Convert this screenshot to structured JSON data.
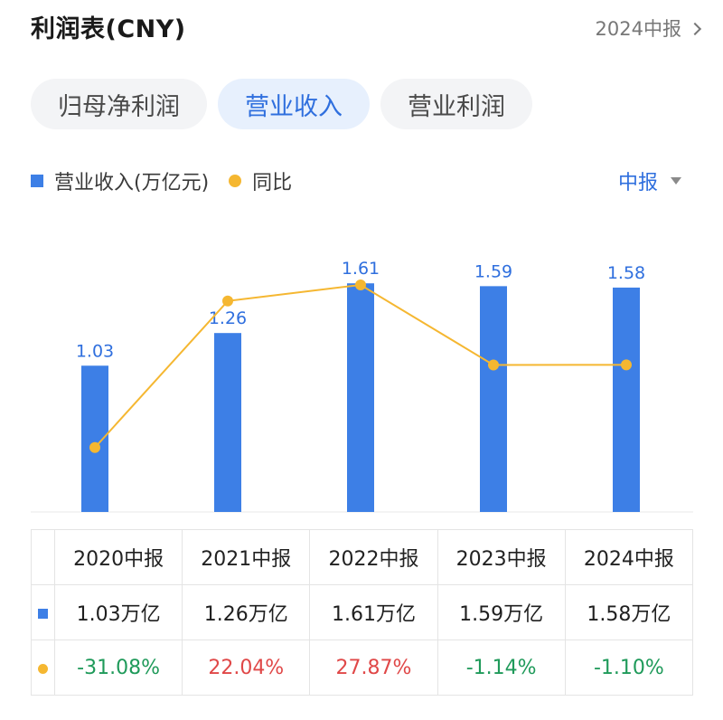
{
  "header": {
    "title": "利润表(CNY)",
    "period_link": "2024中报"
  },
  "tabs": [
    {
      "label": "归母净利润",
      "active": false
    },
    {
      "label": "营业收入",
      "active": true
    },
    {
      "label": "营业利润",
      "active": false
    }
  ],
  "legend": {
    "bar_label": "营业收入(万亿元)",
    "line_label": "同比"
  },
  "period_select": "中报",
  "colors": {
    "bar": "#3d7fe6",
    "line": "#f5b731",
    "positive": "#e04848",
    "negative": "#1f9a5a",
    "accent": "#2f6fde"
  },
  "chart_data": {
    "type": "bar",
    "categories": [
      "2020中报",
      "2021中报",
      "2022中报",
      "2023中报",
      "2024中报"
    ],
    "series": [
      {
        "name": "营业收入(万亿元)",
        "type": "bar",
        "values": [
          1.03,
          1.26,
          1.61,
          1.59,
          1.58
        ],
        "labels": [
          "1.03",
          "1.26",
          "1.61",
          "1.59",
          "1.58"
        ]
      },
      {
        "name": "同比",
        "type": "line",
        "values": [
          -31.08,
          22.04,
          27.87,
          -1.14,
          -1.1
        ]
      }
    ]
  },
  "table": {
    "headers": [
      "2020中报",
      "2021中报",
      "2022中报",
      "2023中报",
      "2024中报"
    ],
    "revenue_row": [
      "1.03万亿",
      "1.26万亿",
      "1.61万亿",
      "1.59万亿",
      "1.58万亿"
    ],
    "yoy_row": [
      "-31.08%",
      "22.04%",
      "27.87%",
      "-1.14%",
      "-1.10%"
    ]
  }
}
